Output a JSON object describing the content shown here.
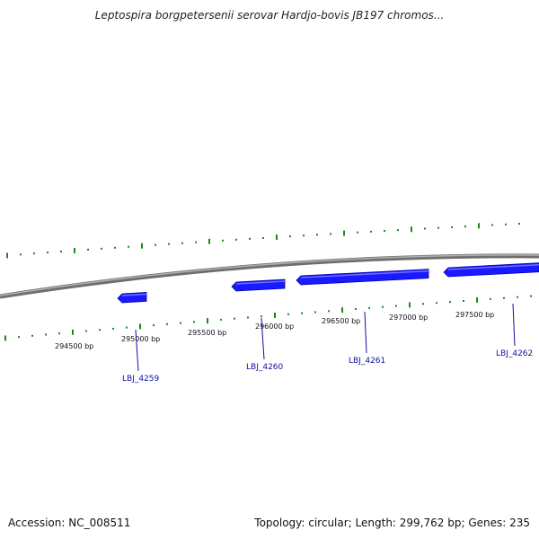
{
  "title": "Leptospira borgpetersenii serovar Hardjo-bovis JB197 chromos...",
  "footer": {
    "accession": "Accession: NC_008511",
    "stats": "Topology: circular; Length: 299,762 bp; Genes: 235"
  },
  "colors": {
    "backbone": "#8c8c8c",
    "tick": "#1a8a1a",
    "gene": "#1a1aff",
    "gene_label": "#1010a0"
  },
  "bp_labels": [
    "294500 bp",
    "295000 bp",
    "295500 bp",
    "296000 bp",
    "296500 bp",
    "297000 bp",
    "297500 bp"
  ],
  "genes": [
    {
      "name": "LBJ_4259",
      "strand": "reverse"
    },
    {
      "name": "LBJ_4260",
      "strand": "reverse"
    },
    {
      "name": "LBJ_4261",
      "strand": "reverse"
    },
    {
      "name": "LBJ_4262",
      "strand": "reverse"
    }
  ]
}
